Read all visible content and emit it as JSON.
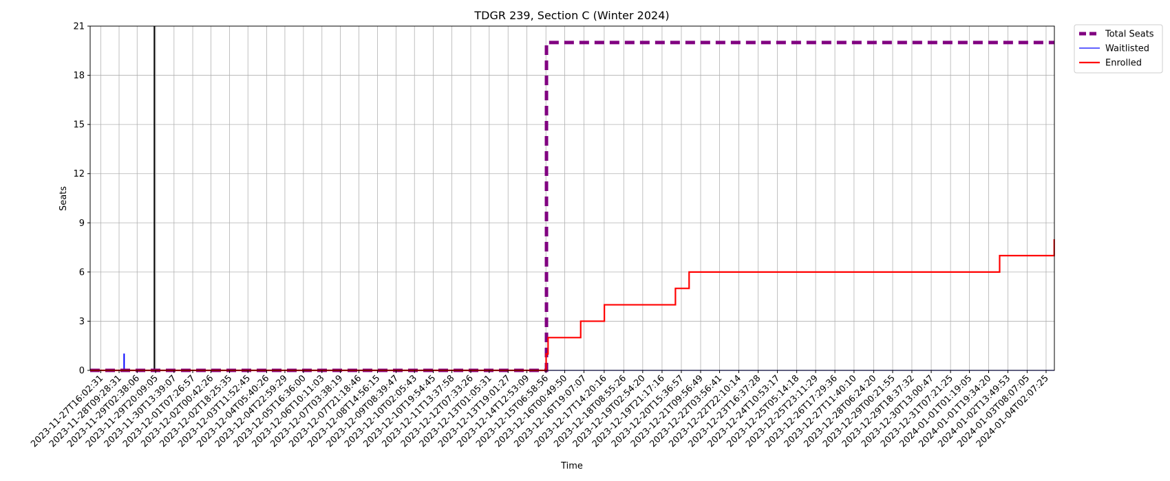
{
  "chart_data": {
    "type": "line",
    "title": "TDGR 239, Section C (Winter 2024)",
    "xlabel": "Time",
    "ylabel": "Seats",
    "ylim": [
      0,
      21
    ],
    "yticks": [
      0,
      3,
      6,
      9,
      12,
      15,
      18,
      21
    ],
    "grid": true,
    "legend_position": "outside-top-right",
    "x_tick_labels": [
      "2023-11-27T16:02:31",
      "2023-11-28T09:28:31",
      "2023-11-29T02:38:06",
      "2023-11-29T20:09:05",
      "2023-11-30T13:39:07",
      "2023-12-01T07:26:57",
      "2023-12-02T00:42:26",
      "2023-12-02T18:25:35",
      "2023-12-03T11:52:45",
      "2023-12-04T05:40:26",
      "2023-12-04T22:59:29",
      "2023-12-05T16:36:00",
      "2023-12-06T10:11:03",
      "2023-12-07T03:38:19",
      "2023-12-07T21:18:46",
      "2023-12-08T14:56:15",
      "2023-12-09T08:39:47",
      "2023-12-10T02:05:43",
      "2023-12-10T19:54:45",
      "2023-12-11T13:37:58",
      "2023-12-12T07:33:26",
      "2023-12-13T01:05:31",
      "2023-12-13T19:01:27",
      "2023-12-14T12:53:09",
      "2023-12-15T06:58:56",
      "2023-12-16T00:49:50",
      "2023-12-16T19:07:07",
      "2023-12-17T14:20:16",
      "2023-12-18T08:55:26",
      "2023-12-19T02:54:20",
      "2023-12-19T21:17:16",
      "2023-12-20T15:36:57",
      "2023-12-21T09:56:49",
      "2023-12-22T03:56:41",
      "2023-12-22T22:10:14",
      "2023-12-23T16:37:28",
      "2023-12-24T10:53:17",
      "2023-12-25T05:14:18",
      "2023-12-25T23:11:29",
      "2023-12-26T17:29:36",
      "2023-12-27T11:40:10",
      "2023-12-28T06:24:20",
      "2023-12-29T00:21:55",
      "2023-12-29T18:37:32",
      "2023-12-30T13:00:47",
      "2023-12-31T07:21:25",
      "2024-01-01T01:19:05",
      "2024-01-01T19:34:20",
      "2024-01-02T13:49:53",
      "2024-01-03T08:07:05",
      "2024-01-04T02:07:25"
    ],
    "xlim": [
      "2023-11-27T06:00:00",
      "2024-01-04T10:00:00"
    ],
    "vertical_marker": "2023-11-29T19:00:00",
    "series": [
      {
        "name": "Total Seats",
        "color": "#800080",
        "style": "dashed-thick",
        "points": [
          [
            "2023-11-27T06:00:00",
            0
          ],
          [
            "2023-12-15T07:30:00",
            0
          ],
          [
            "2023-12-15T07:30:00",
            20
          ],
          [
            "2024-01-04T10:00:00",
            20
          ]
        ]
      },
      {
        "name": "Waitlisted",
        "color": "#0000ff",
        "style": "thin",
        "points": [
          [
            "2023-11-27T06:00:00",
            0
          ],
          [
            "2023-11-28T14:00:00",
            0
          ],
          [
            "2023-11-28T14:00:00",
            1
          ],
          [
            "2023-11-28T14:30:00",
            1
          ],
          [
            "2023-11-28T14:30:00",
            0
          ],
          [
            "2024-01-04T10:00:00",
            0
          ]
        ]
      },
      {
        "name": "Enrolled",
        "color": "#ff0000",
        "style": "solid",
        "points": [
          [
            "2023-11-27T06:00:00",
            0
          ],
          [
            "2023-12-15T07:10:00",
            0
          ],
          [
            "2023-12-15T07:10:00",
            1
          ],
          [
            "2023-12-15T09:00:00",
            1
          ],
          [
            "2023-12-15T09:00:00",
            2
          ],
          [
            "2023-12-16T16:00:00",
            2
          ],
          [
            "2023-12-16T16:00:00",
            3
          ],
          [
            "2023-12-17T14:30:00",
            3
          ],
          [
            "2023-12-17T14:30:00",
            4
          ],
          [
            "2023-12-20T10:00:00",
            4
          ],
          [
            "2023-12-20T10:00:00",
            5
          ],
          [
            "2023-12-20T23:00:00",
            5
          ],
          [
            "2023-12-20T23:00:00",
            6
          ],
          [
            "2024-01-02T06:00:00",
            6
          ],
          [
            "2024-01-02T06:00:00",
            7
          ],
          [
            "2024-01-04T09:50:00",
            7
          ],
          [
            "2024-01-04T09:50:00",
            8
          ]
        ]
      }
    ]
  }
}
